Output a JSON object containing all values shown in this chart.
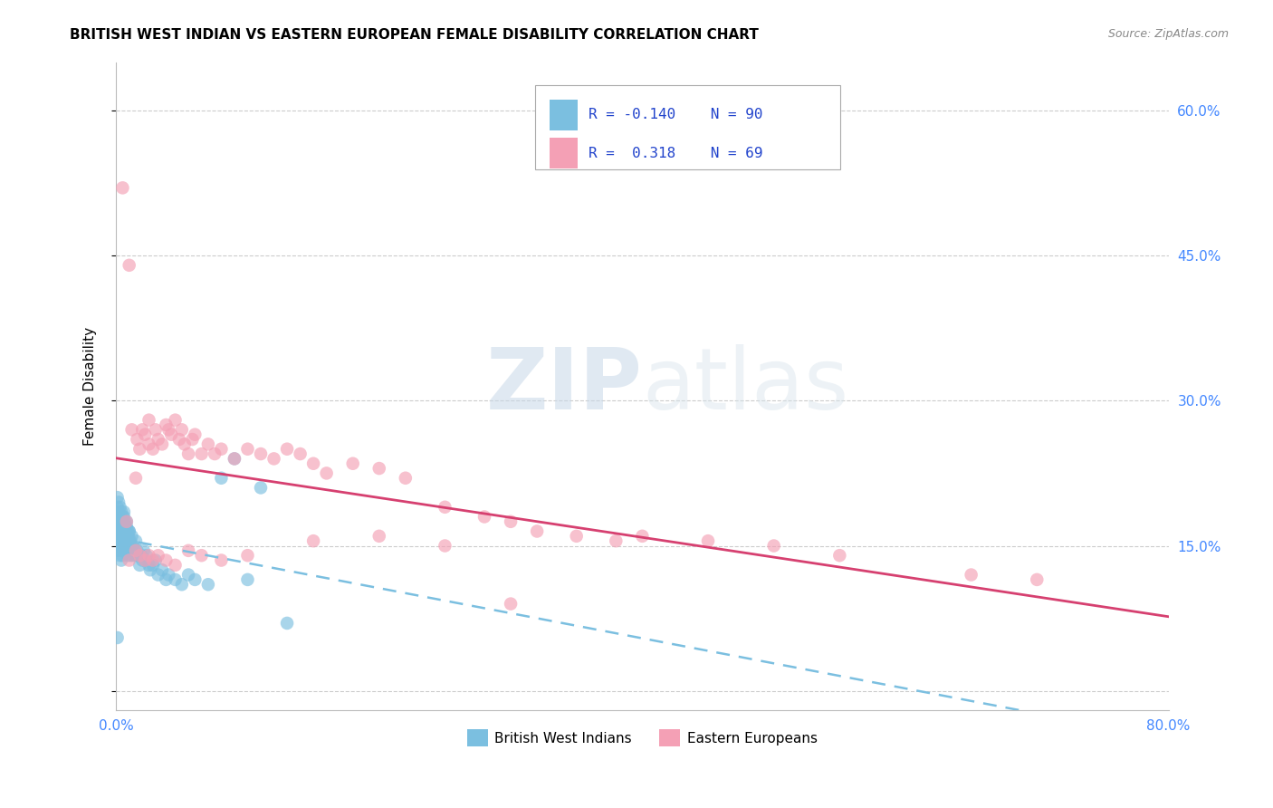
{
  "title": "BRITISH WEST INDIAN VS EASTERN EUROPEAN FEMALE DISABILITY CORRELATION CHART",
  "source": "Source: ZipAtlas.com",
  "ylabel": "Female Disability",
  "xlim": [
    0.0,
    0.8
  ],
  "ylim": [
    -0.02,
    0.65
  ],
  "ytick_positions": [
    0.0,
    0.15,
    0.3,
    0.45,
    0.6
  ],
  "ytick_labels_right": [
    "",
    "15.0%",
    "30.0%",
    "45.0%",
    "60.0%"
  ],
  "grid_color": "#cccccc",
  "background_color": "#ffffff",
  "series1_label": "British West Indians",
  "series1_color": "#7bbfe0",
  "series1_R": -0.14,
  "series1_N": 90,
  "series2_label": "Eastern Europeans",
  "series2_color": "#f4a0b5",
  "series2_R": 0.318,
  "series2_N": 69,
  "legend_color": "#2244cc",
  "bwi_x": [
    0.001,
    0.001,
    0.001,
    0.002,
    0.002,
    0.002,
    0.002,
    0.003,
    0.003,
    0.003,
    0.003,
    0.004,
    0.004,
    0.004,
    0.004,
    0.005,
    0.005,
    0.005,
    0.005,
    0.006,
    0.006,
    0.006,
    0.006,
    0.007,
    0.007,
    0.007,
    0.007,
    0.008,
    0.008,
    0.008,
    0.009,
    0.009,
    0.009,
    0.01,
    0.01,
    0.01,
    0.011,
    0.011,
    0.012,
    0.012,
    0.013,
    0.013,
    0.014,
    0.015,
    0.015,
    0.016,
    0.017,
    0.018,
    0.019,
    0.02,
    0.021,
    0.022,
    0.023,
    0.025,
    0.026,
    0.028,
    0.03,
    0.032,
    0.035,
    0.038,
    0.04,
    0.045,
    0.05,
    0.055,
    0.06,
    0.07,
    0.08,
    0.09,
    0.1,
    0.11,
    0.13,
    0.001,
    0.001,
    0.002,
    0.002,
    0.003,
    0.003,
    0.003,
    0.004,
    0.004,
    0.005,
    0.005,
    0.006,
    0.006,
    0.007,
    0.008,
    0.009,
    0.01,
    0.012,
    0.001
  ],
  "bwi_y": [
    0.15,
    0.16,
    0.18,
    0.145,
    0.155,
    0.165,
    0.175,
    0.14,
    0.15,
    0.16,
    0.17,
    0.135,
    0.145,
    0.16,
    0.175,
    0.14,
    0.155,
    0.165,
    0.17,
    0.145,
    0.155,
    0.165,
    0.18,
    0.15,
    0.16,
    0.17,
    0.175,
    0.145,
    0.16,
    0.175,
    0.14,
    0.155,
    0.165,
    0.145,
    0.155,
    0.165,
    0.14,
    0.155,
    0.145,
    0.16,
    0.14,
    0.15,
    0.145,
    0.14,
    0.155,
    0.145,
    0.14,
    0.13,
    0.14,
    0.135,
    0.145,
    0.135,
    0.14,
    0.13,
    0.125,
    0.13,
    0.135,
    0.12,
    0.125,
    0.115,
    0.12,
    0.115,
    0.11,
    0.12,
    0.115,
    0.11,
    0.22,
    0.24,
    0.115,
    0.21,
    0.07,
    0.19,
    0.2,
    0.185,
    0.195,
    0.17,
    0.18,
    0.19,
    0.175,
    0.185,
    0.17,
    0.18,
    0.175,
    0.185,
    0.165,
    0.17,
    0.16,
    0.165,
    0.15,
    0.055
  ],
  "ee_x": [
    0.005,
    0.008,
    0.01,
    0.012,
    0.015,
    0.016,
    0.018,
    0.02,
    0.022,
    0.025,
    0.025,
    0.028,
    0.03,
    0.032,
    0.035,
    0.038,
    0.04,
    0.042,
    0.045,
    0.048,
    0.05,
    0.052,
    0.055,
    0.058,
    0.06,
    0.065,
    0.07,
    0.075,
    0.08,
    0.09,
    0.1,
    0.11,
    0.12,
    0.13,
    0.14,
    0.15,
    0.16,
    0.18,
    0.2,
    0.22,
    0.25,
    0.28,
    0.3,
    0.32,
    0.35,
    0.38,
    0.4,
    0.45,
    0.5,
    0.55,
    0.65,
    0.7,
    0.01,
    0.015,
    0.018,
    0.022,
    0.025,
    0.028,
    0.032,
    0.038,
    0.045,
    0.055,
    0.065,
    0.08,
    0.1,
    0.15,
    0.2,
    0.25,
    0.3
  ],
  "ee_y": [
    0.52,
    0.175,
    0.44,
    0.27,
    0.22,
    0.26,
    0.25,
    0.27,
    0.265,
    0.28,
    0.255,
    0.25,
    0.27,
    0.26,
    0.255,
    0.275,
    0.27,
    0.265,
    0.28,
    0.26,
    0.27,
    0.255,
    0.245,
    0.26,
    0.265,
    0.245,
    0.255,
    0.245,
    0.25,
    0.24,
    0.25,
    0.245,
    0.24,
    0.25,
    0.245,
    0.235,
    0.225,
    0.235,
    0.23,
    0.22,
    0.19,
    0.18,
    0.175,
    0.165,
    0.16,
    0.155,
    0.16,
    0.155,
    0.15,
    0.14,
    0.12,
    0.115,
    0.135,
    0.145,
    0.14,
    0.135,
    0.14,
    0.135,
    0.14,
    0.135,
    0.13,
    0.145,
    0.14,
    0.135,
    0.14,
    0.155,
    0.16,
    0.15,
    0.09
  ]
}
